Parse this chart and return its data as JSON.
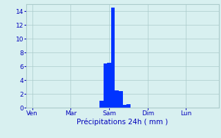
{
  "title": "",
  "xlabel": "Précipitations 24h ( mm )",
  "ylabel": "",
  "background_color": "#d8f0f0",
  "bar_color": "#0033ff",
  "grid_color": "#aacaca",
  "axis_label_color": "#0000bb",
  "tick_color": "#0000bb",
  "ylim": [
    0,
    15
  ],
  "yticks": [
    0,
    2,
    4,
    6,
    8,
    10,
    12,
    14
  ],
  "xlim": [
    0,
    100
  ],
  "xtick_positions": [
    3,
    23,
    43,
    63,
    83
  ],
  "xtick_labels": [
    "Ven",
    "Mar",
    "Sam",
    "Dim",
    "Lun"
  ],
  "bar_positions": [
    39,
    41,
    43,
    45,
    47,
    49,
    51,
    53
  ],
  "bar_heights": [
    1.0,
    6.4,
    6.5,
    14.5,
    2.5,
    2.4,
    0.4,
    0.5
  ],
  "bar_width": 2.0
}
